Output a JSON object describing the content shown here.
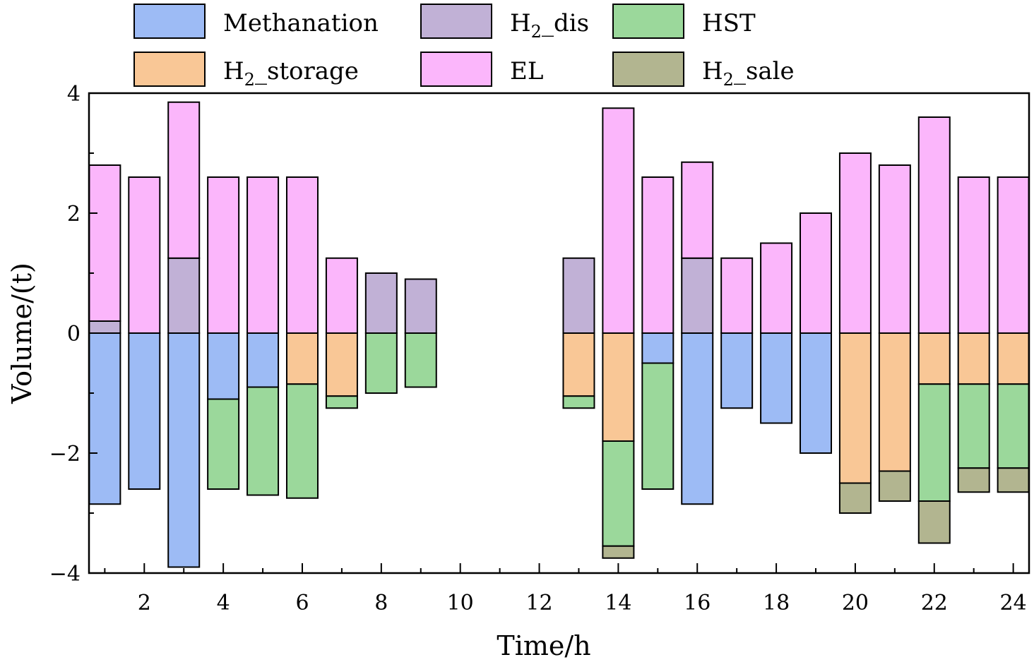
{
  "chart_data": {
    "type": "bar",
    "stacked": true,
    "title": "",
    "xlabel": "Time/h",
    "ylabel": "Volume/(t)",
    "ylim": [
      -4,
      4
    ],
    "yticks": [
      -4,
      -2,
      0,
      2,
      4
    ],
    "ytick_labels": [
      "−4",
      "−2",
      "0",
      "2",
      "4"
    ],
    "xlim": [
      0.6,
      24.4
    ],
    "xticks": [
      2,
      4,
      6,
      8,
      10,
      12,
      14,
      16,
      18,
      20,
      22,
      24
    ],
    "xtick_labels": [
      "2",
      "4",
      "6",
      "8",
      "10",
      "12",
      "14",
      "16",
      "18",
      "20",
      "22",
      "24"
    ],
    "categories": [
      1,
      2,
      3,
      4,
      5,
      6,
      7,
      8,
      9,
      10,
      11,
      12,
      13,
      14,
      15,
      16,
      17,
      18,
      19,
      20,
      21,
      22,
      23,
      24
    ],
    "legend": {
      "position": "top",
      "entries": [
        {
          "key": "methanation",
          "label": "Methanation",
          "sub": "",
          "rest": ""
        },
        {
          "key": "h2_dis",
          "label": "H",
          "sub": "2",
          "rest": "_dis"
        },
        {
          "key": "hst",
          "label": "HST",
          "sub": "",
          "rest": ""
        },
        {
          "key": "h2_storage",
          "label": "H",
          "sub": "2",
          "rest": "_storage"
        },
        {
          "key": "el",
          "label": "EL",
          "sub": "",
          "rest": ""
        },
        {
          "key": "h2_sale",
          "label": "H",
          "sub": "2",
          "rest": "_sale"
        }
      ]
    },
    "colors": {
      "methanation": "#9DBBF5",
      "h2_dis": "#C1B1D6",
      "hst": "#9BD89B",
      "h2_storage": "#F9C796",
      "el": "#FBB6FB",
      "h2_sale": "#B2B590"
    },
    "positive_stack_order": [
      "h2_dis",
      "el"
    ],
    "negative_stack_order": [
      "h2_storage",
      "methanation",
      "hst",
      "h2_sale"
    ],
    "series": [
      {
        "key": "h2_dis",
        "name": "H2_dis",
        "values": [
          0.2,
          0,
          1.25,
          0,
          0,
          0,
          0,
          1.0,
          0.9,
          0,
          0,
          0,
          1.25,
          0,
          0,
          1.25,
          0,
          0,
          0,
          0,
          0,
          0,
          0,
          0
        ]
      },
      {
        "key": "el",
        "name": "EL",
        "values": [
          2.6,
          2.6,
          2.6,
          2.6,
          2.6,
          2.6,
          1.25,
          0,
          0,
          0,
          0,
          0,
          0,
          3.75,
          2.6,
          1.6,
          1.25,
          1.5,
          2.0,
          3.0,
          2.8,
          3.6,
          2.6,
          2.6
        ]
      },
      {
        "key": "h2_storage",
        "name": "H2_storage",
        "values": [
          0,
          0,
          0,
          0,
          0,
          -0.85,
          -1.05,
          0,
          0,
          0,
          0,
          0,
          -1.05,
          -1.8,
          0,
          0,
          0,
          0,
          0,
          -2.5,
          -2.3,
          -0.85,
          -0.85,
          -0.85
        ]
      },
      {
        "key": "methanation",
        "name": "Methanation",
        "values": [
          -2.85,
          -2.6,
          -3.9,
          -1.1,
          -0.9,
          0,
          0,
          0,
          0,
          0,
          0,
          0,
          0,
          0,
          -0.5,
          -2.85,
          -1.25,
          -1.5,
          -2.0,
          0,
          0,
          0,
          0,
          0
        ]
      },
      {
        "key": "hst",
        "name": "HST",
        "values": [
          0,
          0,
          0,
          -1.5,
          -1.8,
          -1.9,
          -0.2,
          -1.0,
          -0.9,
          0,
          0,
          0,
          -0.2,
          -1.75,
          -2.1,
          0,
          0,
          0,
          0,
          0,
          0,
          -1.95,
          -1.4,
          -1.4
        ]
      },
      {
        "key": "h2_sale",
        "name": "H2_sale",
        "values": [
          0,
          0,
          0,
          0,
          0,
          0,
          0,
          0,
          0,
          0,
          0,
          0,
          0,
          -0.2,
          0,
          0,
          0,
          0,
          0,
          -0.5,
          -0.5,
          -0.7,
          -0.4,
          -0.4
        ]
      }
    ]
  }
}
